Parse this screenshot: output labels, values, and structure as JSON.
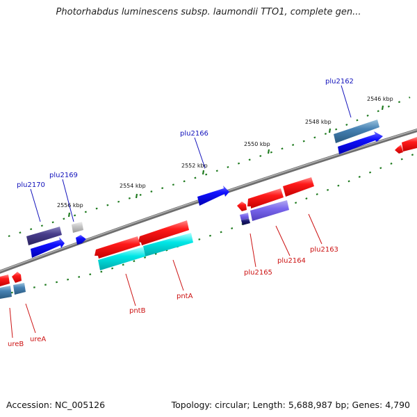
{
  "title": "Photorhabdus luminescens subsp. laumondii TTO1, complete gen...",
  "footer": {
    "accession": "Accession: NC_005126",
    "topology": "Topology: circular; Length: 5,688,987 bp; Genes: 4,790"
  },
  "colors": {
    "backbone": "#8a8a8a",
    "tick": "#1e7a1e",
    "forward_label": "#1111bb",
    "reverse_label": "#cc1111"
  },
  "ticks": [
    {
      "label": "2546 kbp"
    },
    {
      "label": "2548 kbp"
    },
    {
      "label": "2550 kbp"
    },
    {
      "label": "2552 kbp"
    },
    {
      "label": "2554 kbp"
    },
    {
      "label": "2556 kbp"
    }
  ],
  "genes": [
    {
      "name": "plu2162",
      "strand": "forward"
    },
    {
      "name": "plu2166",
      "strand": "forward"
    },
    {
      "name": "plu2169",
      "strand": "forward"
    },
    {
      "name": "plu2170",
      "strand": "forward"
    },
    {
      "name": "plu2163",
      "strand": "reverse"
    },
    {
      "name": "plu2164",
      "strand": "reverse"
    },
    {
      "name": "plu2165",
      "strand": "reverse"
    },
    {
      "name": "pntA",
      "strand": "reverse"
    },
    {
      "name": "pntB",
      "strand": "reverse"
    },
    {
      "name": "ureA",
      "strand": "reverse"
    },
    {
      "name": "ureB",
      "strand": "reverse"
    }
  ]
}
